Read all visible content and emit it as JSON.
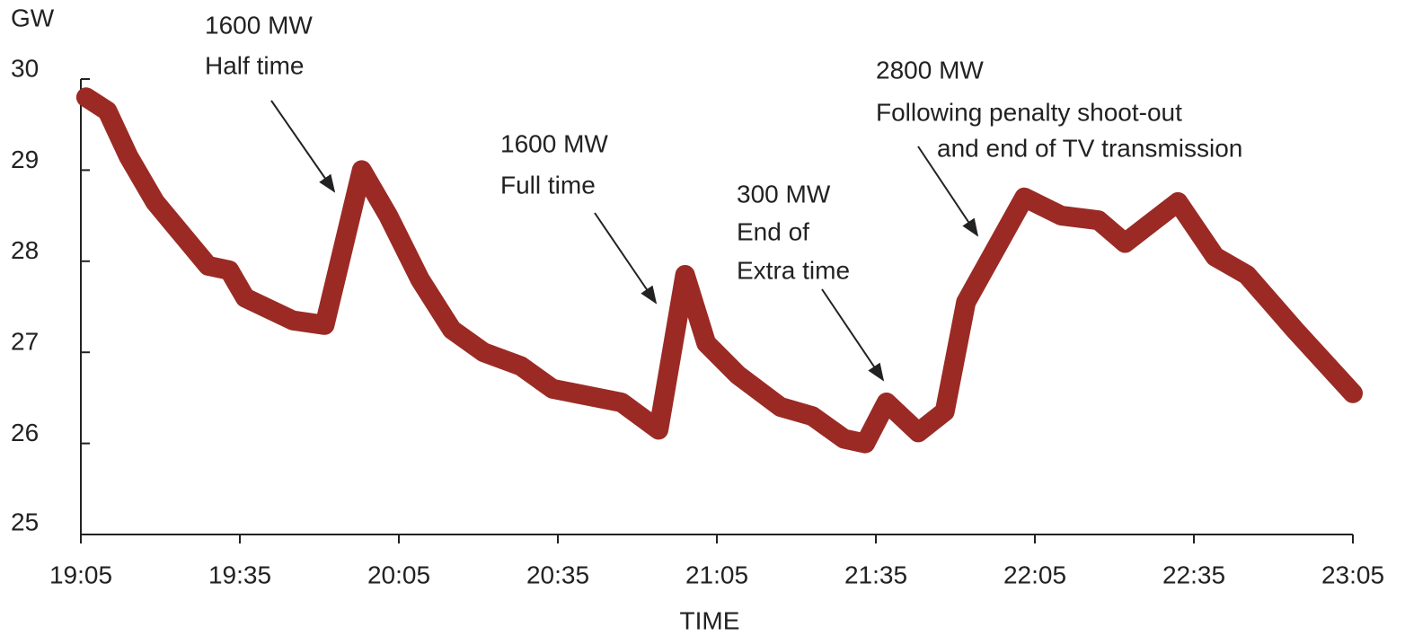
{
  "chart_data": {
    "type": "line",
    "ylabel": "GW",
    "xlabel": "TIME",
    "x": [
      "19:06",
      "19:10",
      "19:14",
      "19:19",
      "19:24",
      "19:29",
      "19:33",
      "19:36",
      "19:45",
      "19:51",
      "19:58",
      "20:03",
      "20:09",
      "20:15",
      "20:21",
      "20:28",
      "20:34",
      "20:47",
      "20:54",
      "20:59",
      "21:03",
      "21:09",
      "21:17",
      "21:23",
      "21:29",
      "21:33",
      "21:37",
      "21:43",
      "21:48",
      "21:52",
      "22:03",
      "22:10",
      "22:17",
      "22:22",
      "22:32",
      "22:39",
      "22:45",
      "22:54",
      "23:05"
    ],
    "values": [
      29.8,
      29.65,
      29.15,
      28.65,
      28.3,
      27.95,
      27.9,
      27.6,
      27.35,
      27.3,
      29.0,
      28.5,
      27.8,
      27.25,
      27.0,
      26.85,
      26.6,
      26.45,
      26.15,
      27.85,
      27.1,
      26.75,
      26.4,
      26.3,
      26.05,
      26.0,
      26.45,
      26.12,
      26.35,
      27.55,
      28.7,
      28.5,
      28.45,
      28.2,
      28.65,
      28.05,
      27.85,
      27.25,
      26.55
    ],
    "color": "#9b2a25",
    "xlim": [
      "19:05",
      "23:05"
    ],
    "xticks": [
      "19:05",
      "19:35",
      "20:05",
      "20:35",
      "21:05",
      "21:35",
      "22:05",
      "22:35",
      "23:05"
    ],
    "ylim": [
      25,
      30
    ],
    "yticks": [
      25,
      26,
      27,
      28,
      29,
      30
    ],
    "annotations": [
      {
        "text": [
          "1600 MW",
          "Half time"
        ]
      },
      {
        "text": [
          "1600 MW",
          "Full time"
        ]
      },
      {
        "text": [
          "300 MW",
          "End of",
          "Extra time"
        ]
      },
      {
        "text": [
          "2800 MW",
          "Following penalty shoot-out",
          "and end of TV transmission"
        ]
      }
    ]
  }
}
